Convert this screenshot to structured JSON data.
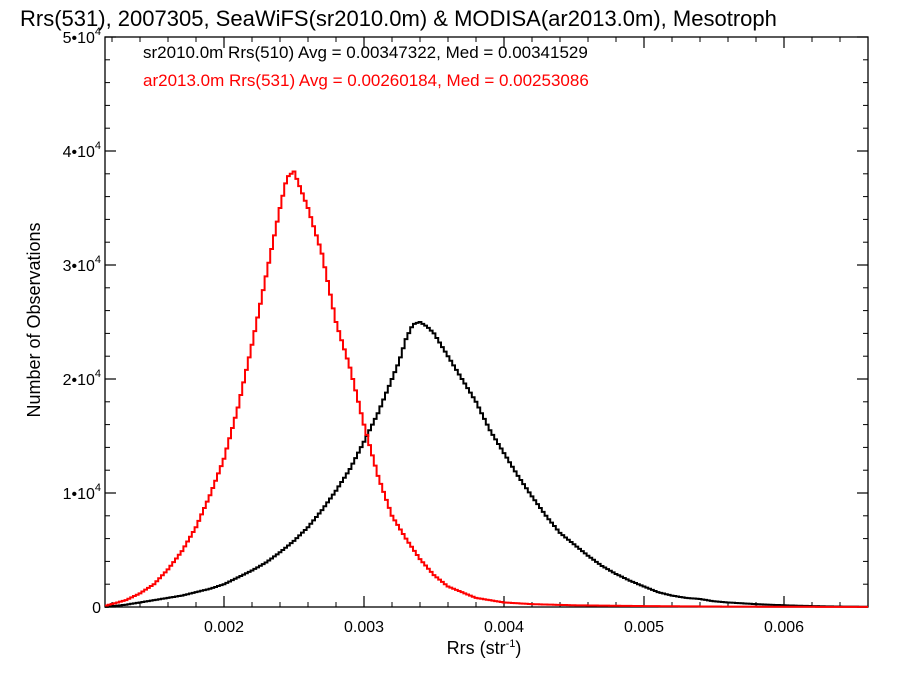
{
  "chart_data": {
    "type": "line",
    "title": "Rrs(531), 2007305, SeaWiFS(sr2010.0m) & MODISA(ar2013.0m), Mesotroph",
    "xlabel": {
      "main": "Rrs (str",
      "sup": "-1",
      "close": ")"
    },
    "ylabel": "Number of Observations",
    "xlim": [
      0.00115,
      0.0066
    ],
    "ylim": [
      0,
      50000
    ],
    "xticks": [
      {
        "value": 0.002,
        "label": "0.002"
      },
      {
        "value": 0.003,
        "label": "0.003"
      },
      {
        "value": 0.004,
        "label": "0.004"
      },
      {
        "value": 0.005,
        "label": "0.005"
      },
      {
        "value": 0.006,
        "label": "0.006"
      }
    ],
    "yticks": [
      {
        "value": 0,
        "base": "0",
        "exp": ""
      },
      {
        "value": 10000,
        "base": "1•10",
        "exp": "4"
      },
      {
        "value": 20000,
        "base": "2•10",
        "exp": "4"
      },
      {
        "value": 30000,
        "base": "3•10",
        "exp": "4"
      },
      {
        "value": 40000,
        "base": "4•10",
        "exp": "4"
      },
      {
        "value": 50000,
        "base": "5•10",
        "exp": "4"
      }
    ],
    "xminor_step": 0.0002,
    "yminor_step": 2000,
    "annotations": [
      {
        "text": "sr2010.0m Rrs(510) Avg = 0.00347322, Med = 0.00341529",
        "color": "#000000"
      },
      {
        "text": "ar2013.0m Rrs(531) Avg = 0.00260184, Med = 0.00253086",
        "color": "#ff0000"
      }
    ],
    "series": [
      {
        "color": "#000000",
        "style": "step",
        "x": [
          0.00115,
          0.0013,
          0.0015,
          0.0017,
          0.0019,
          0.002,
          0.0021,
          0.0022,
          0.0023,
          0.0024,
          0.0025,
          0.0026,
          0.0027,
          0.0028,
          0.0029,
          0.003,
          0.0031,
          0.0032,
          0.00325,
          0.0033,
          0.00335,
          0.0034,
          0.00345,
          0.0035,
          0.0036,
          0.0037,
          0.0038,
          0.0039,
          0.004,
          0.0041,
          0.0042,
          0.0043,
          0.0044,
          0.0045,
          0.0046,
          0.0047,
          0.0048,
          0.0049,
          0.005,
          0.0051,
          0.0052,
          0.0053,
          0.0054,
          0.0055,
          0.0056,
          0.0058,
          0.006,
          0.0062,
          0.0064,
          0.0066
        ],
        "y": [
          0,
          200,
          600,
          1000,
          1600,
          2000,
          2600,
          3200,
          3900,
          4800,
          5800,
          7000,
          8500,
          10200,
          12100,
          14500,
          17000,
          20000,
          21500,
          23500,
          24800,
          25000,
          24600,
          24000,
          22000,
          20000,
          18000,
          15500,
          13500,
          11500,
          9700,
          8000,
          6500,
          5500,
          4500,
          3600,
          2900,
          2300,
          1800,
          1300,
          1000,
          800,
          700,
          500,
          400,
          250,
          150,
          80,
          40,
          20
        ]
      },
      {
        "color": "#ff0000",
        "style": "step",
        "x": [
          0.00115,
          0.0013,
          0.0014,
          0.0015,
          0.0016,
          0.0017,
          0.0018,
          0.0019,
          0.002,
          0.0021,
          0.0022,
          0.0023,
          0.0024,
          0.00245,
          0.0025,
          0.0026,
          0.0027,
          0.0028,
          0.0029,
          0.003,
          0.0031,
          0.0032,
          0.0033,
          0.0034,
          0.0035,
          0.0036,
          0.0038,
          0.004,
          0.0042,
          0.0045,
          0.005,
          0.0055,
          0.006,
          0.0066
        ],
        "y": [
          100,
          600,
          1200,
          2000,
          3300,
          4900,
          7000,
          9800,
          13000,
          17500,
          23000,
          29000,
          35000,
          37700,
          38200,
          35000,
          31000,
          25000,
          21000,
          16000,
          11500,
          8000,
          6000,
          4200,
          2800,
          1800,
          800,
          400,
          250,
          150,
          80,
          40,
          20,
          10
        ]
      }
    ]
  }
}
